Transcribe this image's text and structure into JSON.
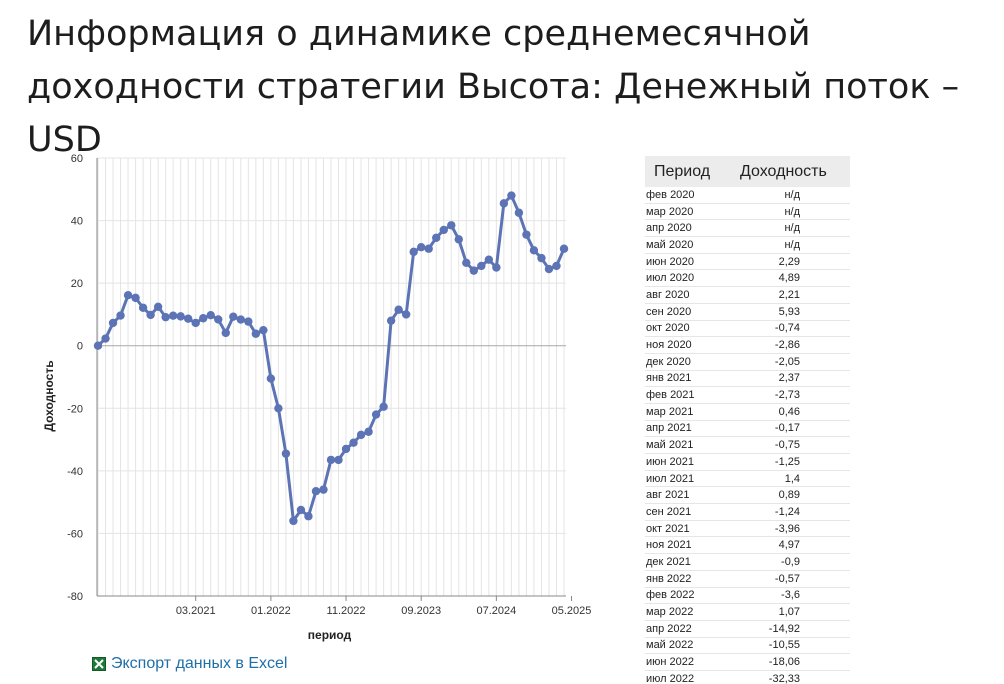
{
  "page": {
    "title": "Информация о динамике среднемесячной доходности стратегии Высота: Денежный поток – USD"
  },
  "export": {
    "label": "Экспорт данных в Excel",
    "icon": "excel-icon"
  },
  "table": {
    "headers": [
      "Период",
      "Доходность"
    ],
    "rows": [
      [
        "фев 2020",
        "н/д"
      ],
      [
        "мар 2020",
        "н/д"
      ],
      [
        "апр 2020",
        "н/д"
      ],
      [
        "май 2020",
        "н/д"
      ],
      [
        "июн 2020",
        "2,29"
      ],
      [
        "июл 2020",
        "4,89"
      ],
      [
        "авг 2020",
        "2,21"
      ],
      [
        "сен 2020",
        "5,93"
      ],
      [
        "окт 2020",
        "-0,74"
      ],
      [
        "ноя 2020",
        "-2,86"
      ],
      [
        "дек 2020",
        "-2,05"
      ],
      [
        "янв 2021",
        "2,37"
      ],
      [
        "фев 2021",
        "-2,73"
      ],
      [
        "мар 2021",
        "0,46"
      ],
      [
        "апр 2021",
        "-0,17"
      ],
      [
        "май 2021",
        "-0,75"
      ],
      [
        "июн 2021",
        "-1,25"
      ],
      [
        "июл 2021",
        "1,4"
      ],
      [
        "авг 2021",
        "0,89"
      ],
      [
        "сен 2021",
        "-1,24"
      ],
      [
        "окт 2021",
        "-3,96"
      ],
      [
        "ноя 2021",
        "4,97"
      ],
      [
        "дек 2021",
        "-0,9"
      ],
      [
        "янв 2022",
        "-0,57"
      ],
      [
        "фев 2022",
        "-3,6"
      ],
      [
        "мар 2022",
        "1,07"
      ],
      [
        "апр 2022",
        "-14,92"
      ],
      [
        "май 2022",
        "-10,55"
      ],
      [
        "июн 2022",
        "-18,06"
      ],
      [
        "июл 2022",
        "-32,33"
      ]
    ]
  },
  "chart_data": {
    "type": "line",
    "title": "",
    "xlabel": "период",
    "ylabel": "Доходность",
    "ylim": [
      -80,
      60
    ],
    "yticks": [
      -80,
      -60,
      -40,
      -20,
      0,
      20,
      40,
      60
    ],
    "x_tick_labels": [
      {
        "label": "03.2021",
        "index": 13
      },
      {
        "label": "01.2022",
        "index": 23
      },
      {
        "label": "11.2022",
        "index": 33
      },
      {
        "label": "09.2023",
        "index": 43
      },
      {
        "label": "07.2024",
        "index": 53
      },
      {
        "label": "05.2025",
        "index": 63
      }
    ],
    "grid": true,
    "series": [
      {
        "name": "",
        "color": "#5c74b5",
        "x_start": "06.2020",
        "values": [
          0,
          2.29,
          7.28,
          9.65,
          16.15,
          15.29,
          12.13,
          9.83,
          12.44,
          9.12,
          9.59,
          9.38,
          8.63,
          7.28,
          8.78,
          9.75,
          8.39,
          4.09,
          9.28,
          8.35,
          7.71,
          3.83,
          4.97,
          -10.5,
          -20,
          -34.5,
          -56,
          -52.5,
          -54.5,
          -46.5,
          -46,
          -36.5,
          -36.5,
          -33,
          -31,
          -28.5,
          -27.5,
          -22,
          -19.5,
          8,
          11.5,
          10,
          30,
          31.5,
          31,
          34.5,
          37,
          38.5,
          34,
          26.5,
          24,
          25.5,
          27.5,
          25,
          45.5,
          48,
          42.5,
          35.5,
          30.5,
          28,
          24.5,
          25.5,
          31
        ]
      }
    ]
  }
}
